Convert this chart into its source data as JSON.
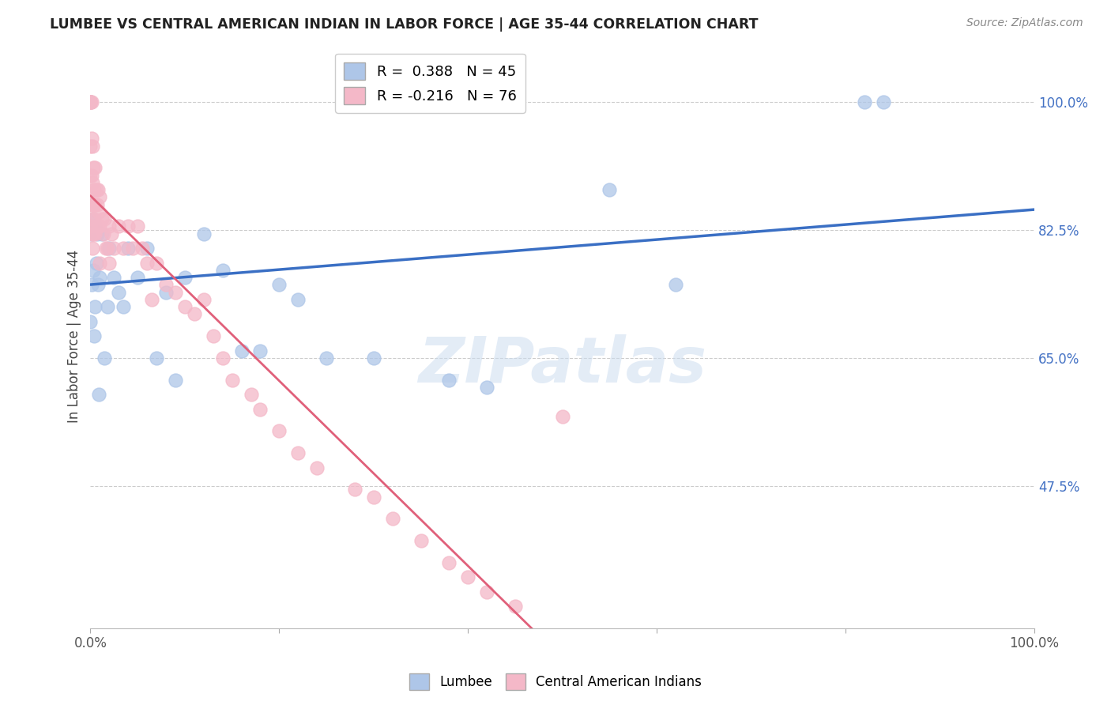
{
  "title": "LUMBEE VS CENTRAL AMERICAN INDIAN IN LABOR FORCE | AGE 35-44 CORRELATION CHART",
  "source": "Source: ZipAtlas.com",
  "ylabel": "In Labor Force | Age 35-44",
  "xlim": [
    0.0,
    1.0
  ],
  "ylim": [
    0.28,
    1.08
  ],
  "x_ticks": [
    0.0,
    0.2,
    0.4,
    0.6,
    0.8,
    1.0
  ],
  "x_tick_labels": [
    "0.0%",
    "",
    "",
    "",
    "",
    "100.0%"
  ],
  "y_tick_labels_right": [
    "100.0%",
    "82.5%",
    "65.0%",
    "47.5%"
  ],
  "y_tick_values_right": [
    1.0,
    0.825,
    0.65,
    0.475
  ],
  "R_lumbee": 0.388,
  "N_lumbee": 45,
  "R_central": -0.216,
  "N_central": 76,
  "lumbee_color": "#aec6e8",
  "central_color": "#f4b8c8",
  "lumbee_line_color": "#3a6fc4",
  "central_line_color": "#e0607a",
  "lumbee_x": [
    0.0,
    0.0,
    0.0,
    0.0,
    0.001,
    0.001,
    0.002,
    0.003,
    0.003,
    0.004,
    0.005,
    0.005,
    0.006,
    0.007,
    0.008,
    0.009,
    0.01,
    0.012,
    0.015,
    0.018,
    0.02,
    0.025,
    0.03,
    0.035,
    0.04,
    0.05,
    0.06,
    0.07,
    0.08,
    0.09,
    0.1,
    0.12,
    0.14,
    0.16,
    0.18,
    0.2,
    0.22,
    0.25,
    0.3,
    0.38,
    0.42,
    0.55,
    0.62,
    0.82,
    0.84
  ],
  "lumbee_y": [
    1.0,
    1.0,
    0.83,
    0.7,
    0.82,
    0.75,
    0.83,
    0.84,
    0.77,
    0.68,
    0.83,
    0.72,
    0.78,
    0.82,
    0.75,
    0.6,
    0.76,
    0.82,
    0.65,
    0.72,
    0.8,
    0.76,
    0.74,
    0.72,
    0.8,
    0.76,
    0.8,
    0.65,
    0.74,
    0.62,
    0.76,
    0.82,
    0.77,
    0.66,
    0.66,
    0.75,
    0.73,
    0.65,
    0.65,
    0.62,
    0.61,
    0.88,
    0.75,
    1.0,
    1.0
  ],
  "central_x": [
    0.0,
    0.0,
    0.0,
    0.0,
    0.0,
    0.0,
    0.0,
    0.0,
    0.0,
    0.0,
    0.001,
    0.001,
    0.001,
    0.001,
    0.001,
    0.002,
    0.002,
    0.002,
    0.002,
    0.003,
    0.003,
    0.003,
    0.004,
    0.004,
    0.005,
    0.005,
    0.005,
    0.006,
    0.006,
    0.007,
    0.008,
    0.008,
    0.009,
    0.01,
    0.01,
    0.01,
    0.012,
    0.014,
    0.015,
    0.016,
    0.018,
    0.02,
    0.02,
    0.022,
    0.025,
    0.03,
    0.035,
    0.04,
    0.045,
    0.05,
    0.055,
    0.06,
    0.065,
    0.07,
    0.08,
    0.09,
    0.1,
    0.11,
    0.12,
    0.13,
    0.14,
    0.15,
    0.17,
    0.18,
    0.2,
    0.22,
    0.24,
    0.28,
    0.3,
    0.32,
    0.35,
    0.38,
    0.4,
    0.42,
    0.45,
    0.5
  ],
  "central_y": [
    1.0,
    1.0,
    1.0,
    1.0,
    1.0,
    1.0,
    0.94,
    0.9,
    0.86,
    0.83,
    1.0,
    0.95,
    0.9,
    0.86,
    0.82,
    0.94,
    0.89,
    0.84,
    0.8,
    0.91,
    0.86,
    0.82,
    0.88,
    0.84,
    0.91,
    0.86,
    0.82,
    0.88,
    0.83,
    0.86,
    0.88,
    0.83,
    0.85,
    0.87,
    0.83,
    0.78,
    0.84,
    0.82,
    0.84,
    0.8,
    0.8,
    0.83,
    0.78,
    0.82,
    0.8,
    0.83,
    0.8,
    0.83,
    0.8,
    0.83,
    0.8,
    0.78,
    0.73,
    0.78,
    0.75,
    0.74,
    0.72,
    0.71,
    0.73,
    0.68,
    0.65,
    0.62,
    0.6,
    0.58,
    0.55,
    0.52,
    0.5,
    0.47,
    0.46,
    0.43,
    0.4,
    0.37,
    0.35,
    0.33,
    0.31,
    0.57
  ]
}
